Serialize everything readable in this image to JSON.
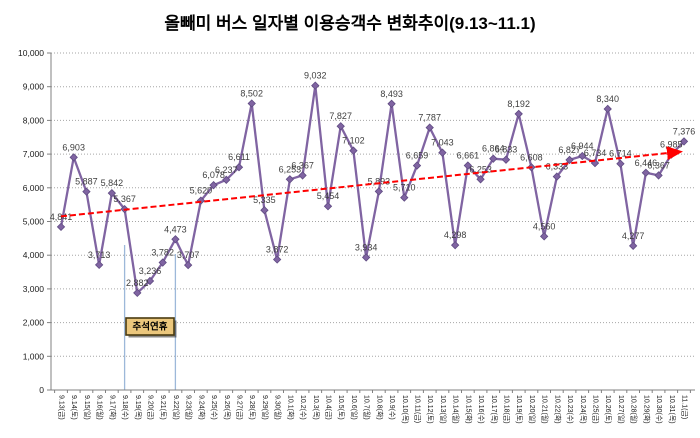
{
  "page": {
    "title": "올빼미 버스 일자별 이용승객수 변화추이(9.13~11.1)"
  },
  "chart_data": {
    "type": "line",
    "title": "올빼미 버스 일자별 이용승객수 변화추이(9.13~11.1)",
    "xlabel": "",
    "ylabel": "",
    "ylim": [
      0,
      10000
    ],
    "ytick_step": 1000,
    "grid": "horizontal-dotted",
    "legend": "none",
    "marker": "diamond",
    "line_color": "#8064A2",
    "marker_edge_color": "#5F4B82",
    "data_label_color": "#3F3F3F",
    "axis_color": "#808080",
    "gridline_color": "#A6A6A6",
    "categories": [
      "9.13(금)",
      "9.14(토)",
      "9.15(일)",
      "9.16(월)",
      "9.17(화)",
      "9.18(수)",
      "9.19(목)",
      "9.20(금)",
      "9.21(토)",
      "9.22(일)",
      "9.23(월)",
      "9.24(화)",
      "9.25(수)",
      "9.26(목)",
      "9.27(금)",
      "9.28(토)",
      "9.29(일)",
      "9.30(월)",
      "10.1(화)",
      "10.2(수)",
      "10.3(목)",
      "10.4(금)",
      "10.5(토)",
      "10.6(일)",
      "10.7(월)",
      "10.8(화)",
      "10.9(수)",
      "10.10(목)",
      "10.11(금)",
      "10.12(토)",
      "10.13(일)",
      "10.14(월)",
      "10.15(화)",
      "10.16(수)",
      "10.17(목)",
      "10.18(금)",
      "10.19(토)",
      "10.20(일)",
      "10.21(월)",
      "10.22(화)",
      "10.23(수)",
      "10.24(목)",
      "10.25(금)",
      "10.26(토)",
      "10.27(일)",
      "10.28(월)",
      "10.29(화)",
      "10.30(수)",
      "10.31(목)",
      "11.1(금)"
    ],
    "values": [
      4841,
      6903,
      5887,
      3713,
      5842,
      5367,
      2882,
      3236,
      3782,
      4473,
      3707,
      5620,
      6078,
      6237,
      6611,
      8502,
      5335,
      3872,
      6253,
      6367,
      9032,
      5454,
      7827,
      7102,
      3934,
      5893,
      8493,
      5710,
      6659,
      7787,
      7043,
      4298,
      6661,
      6253,
      6864,
      6833,
      8192,
      6608,
      4560,
      6333,
      6827,
      6944,
      6734,
      8340,
      6714,
      4277,
      6446,
      6367,
      6985,
      7376
    ],
    "trendline": {
      "type": "linear",
      "style": "dashed",
      "color": "#FF0000",
      "arrow_end": true,
      "start_value": 5150,
      "end_value": 7060
    },
    "annotation": {
      "label": "추석연휴",
      "from_category": "9.18(수)",
      "to_category": "9.22(일)",
      "box_fill": "#EBC77D",
      "box_border": "#4A3B10",
      "line_color": "#9DB8D9"
    }
  }
}
